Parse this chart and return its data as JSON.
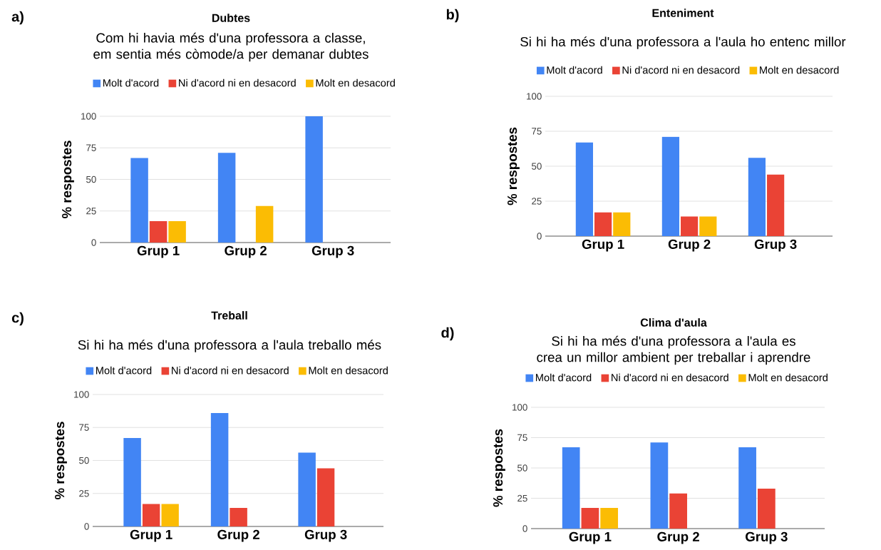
{
  "chart_data": [
    {
      "type": "bar",
      "title": "Dubtes",
      "subtitle": "Com hi havia més d'una professora a classe, em sentia més còmode/a per demanar dubtes",
      "ylabel": "% respostes",
      "categories": [
        "Grup 1",
        "Grup 2",
        "Grup 3"
      ],
      "series": [
        {
          "name": "Molt d'acord",
          "color": "#4285f4",
          "values": [
            67,
            71,
            100
          ]
        },
        {
          "name": "Ni d'acord ni en desacord",
          "color": "#ea4335",
          "values": [
            17,
            0,
            0
          ]
        },
        {
          "name": "Molt en desacord",
          "color": "#fbbc04",
          "values": [
            17,
            29,
            0
          ]
        }
      ],
      "ylim": [
        0,
        100
      ],
      "yticks": [
        0,
        25,
        50,
        75,
        100
      ],
      "grid": "y",
      "legend": "top",
      "annotations": [
        "a)"
      ]
    },
    {
      "type": "bar",
      "title": "Enteniment",
      "subtitle": "Si hi ha més d'una professora a l'aula ho entenc millor",
      "ylabel": "% respostes",
      "categories": [
        "Grup 1",
        "Grup 2",
        "Grup 3"
      ],
      "series": [
        {
          "name": "Molt d'acord",
          "color": "#4285f4",
          "values": [
            67,
            71,
            56
          ]
        },
        {
          "name": "Ni d'acord ni en desacord",
          "color": "#ea4335",
          "values": [
            17,
            14,
            44
          ]
        },
        {
          "name": "Molt en desacord",
          "color": "#fbbc04",
          "values": [
            17,
            14,
            0
          ]
        }
      ],
      "ylim": [
        0,
        100
      ],
      "yticks": [
        0,
        25,
        50,
        75,
        100
      ],
      "grid": "y",
      "legend": "top",
      "annotations": [
        "b)"
      ]
    },
    {
      "type": "bar",
      "title": "Treball",
      "subtitle": "Si hi ha més d'una professora a l'aula treballo més",
      "ylabel": "% respostes",
      "categories": [
        "Grup 1",
        "Grup 2",
        "Grup 3"
      ],
      "series": [
        {
          "name": "Molt d'acord",
          "color": "#4285f4",
          "values": [
            67,
            86,
            56
          ]
        },
        {
          "name": "Ni d'acord ni en desacord",
          "color": "#ea4335",
          "values": [
            17,
            14,
            44
          ]
        },
        {
          "name": "Molt en desacord",
          "color": "#fbbc04",
          "values": [
            17,
            0,
            0
          ]
        }
      ],
      "ylim": [
        0,
        100
      ],
      "yticks": [
        0,
        25,
        50,
        75,
        100
      ],
      "grid": "y",
      "legend": "top",
      "annotations": [
        "c)"
      ]
    },
    {
      "type": "bar",
      "title": "Clima d'aula",
      "subtitle": "Si hi ha més d'una professora a l'aula es crea un millor ambient per treballar i aprendre",
      "ylabel": "% respostes",
      "categories": [
        "Grup 1",
        "Grup 2",
        "Grup 3"
      ],
      "series": [
        {
          "name": "Molt d'acord",
          "color": "#4285f4",
          "values": [
            67,
            71,
            67
          ]
        },
        {
          "name": "Ni d'acord ni en desacord",
          "color": "#ea4335",
          "values": [
            17,
            29,
            33
          ]
        },
        {
          "name": "Molt en desacord",
          "color": "#fbbc04",
          "values": [
            17,
            0,
            0
          ]
        }
      ],
      "ylim": [
        0,
        100
      ],
      "yticks": [
        0,
        25,
        50,
        75,
        100
      ],
      "grid": "y",
      "legend": "top",
      "annotations": [
        "d)"
      ]
    }
  ]
}
